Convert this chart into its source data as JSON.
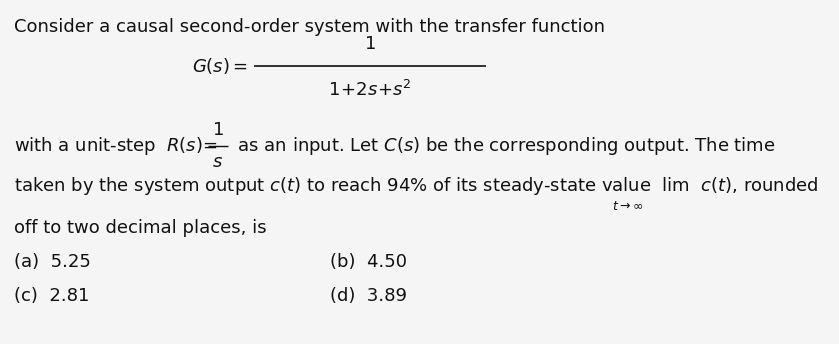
{
  "bg_color": "#f5f5f5",
  "text_color": "#111111",
  "font_size_main": 13.0,
  "font_size_sub": 9.0,
  "line1": "Consider a causal second-order system with the transfer function",
  "opt_a": "(a)  5.25",
  "opt_b": "(b)  4.50",
  "opt_c": "(c)  2.81",
  "opt_d": "(d)  3.89"
}
